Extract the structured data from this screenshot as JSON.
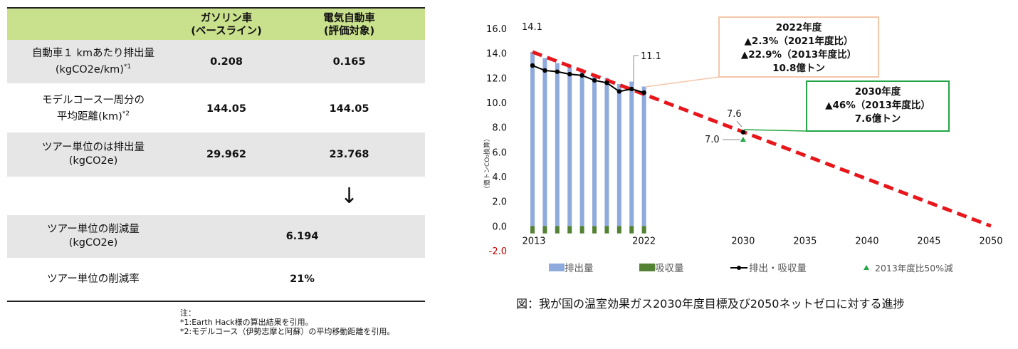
{
  "table": {
    "headers": [
      "",
      "ガソリン車\n(ベースライン)",
      "電気自動車\n(評価対象)"
    ],
    "rows": [
      {
        "label": [
          "自動車１ kmあたり排出量",
          "(kgCO2e/km)"
        ],
        "sup": "*1",
        "v1": "0.208",
        "v2": "0.165"
      },
      {
        "label": [
          "モデルコース一周分の",
          "平均距離(km)"
        ],
        "sup": "*2",
        "v1": "144.05",
        "v2": "144.05"
      },
      {
        "label": [
          "ツアー単位のは排出量",
          "(kgCO2e)"
        ],
        "sup": "",
        "v1": "29.962",
        "v2": "23.768"
      }
    ],
    "arrow": "↓",
    "reduction_rows": [
      {
        "label": [
          "ツアー単位の削減量",
          "(kgCO2e)"
        ],
        "value": "6.194"
      },
      {
        "label": [
          "ツアー単位の削減率"
        ],
        "value": "21%"
      }
    ],
    "notes": [
      "注：",
      "*1:Earth Hack様の算出結果を引用。",
      "*2:モデルコース（伊勢志摩と阿蘇）の平均移動距離を引用。"
    ]
  },
  "chart_data": {
    "type": "bar",
    "ylabel": "（億トンCO₂換算）",
    "ylim": [
      -2.0,
      16.0
    ],
    "y_ticks": [
      "16.0",
      "14.0",
      "12.0",
      "10.0",
      "8.0",
      "6.0",
      "4.0",
      "2.0",
      "0.0",
      "-2.0"
    ],
    "x_ticks": [
      "2013",
      "2022",
      "2030",
      "2035",
      "2040",
      "2045",
      "2050"
    ],
    "years": [
      2013,
      2014,
      2015,
      2016,
      2017,
      2018,
      2019,
      2020,
      2021,
      2022
    ],
    "series": [
      {
        "name": "排出量",
        "color": "#8faadc",
        "values": [
          14.1,
          13.6,
          13.2,
          12.9,
          12.6,
          12.3,
          12.0,
          11.5,
          11.7,
          11.3
        ]
      },
      {
        "name": "吸収量",
        "color": "#548235",
        "values": [
          -0.6,
          -0.6,
          -0.6,
          -0.6,
          -0.6,
          -0.6,
          -0.6,
          -0.6,
          -0.6,
          -0.6
        ]
      },
      {
        "name": "排出・吸収量",
        "color": "#000000",
        "values": [
          13.0,
          12.6,
          12.5,
          12.3,
          12.2,
          11.8,
          11.6,
          10.9,
          11.1,
          10.8
        ]
      },
      {
        "name": "2013年度比50%減",
        "color": "#22a645",
        "x": 2030,
        "value": 7.0
      }
    ],
    "target_line": {
      "color": "#e8161b",
      "from": [
        2013,
        14.1
      ],
      "to": [
        2050,
        0.0
      ]
    },
    "point_labels": [
      "14.1",
      "11.1",
      "7.6",
      "7.0"
    ],
    "annotations": [
      {
        "lines": [
          "2022年度",
          "▲2.3%（2021年度比）",
          "▲22.9%（2013年度比）",
          "10.8億トン"
        ],
        "border": "#f4c7a9"
      },
      {
        "lines": [
          "2030年度",
          "▲46%（2013年度比）",
          "7.6億トン"
        ],
        "border": "#22a645"
      }
    ],
    "caption": "図：我が国の温室効果ガス2030年度目標及び2050ネットゼロに対する進捗"
  }
}
